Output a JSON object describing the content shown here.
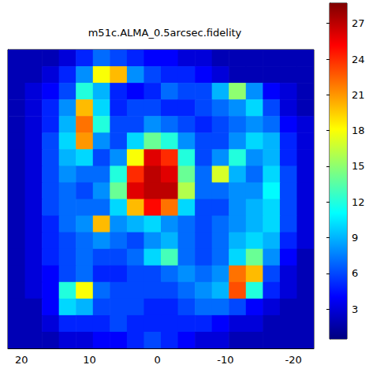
{
  "chart_data": {
    "type": "heatmap",
    "title": "m51c.ALMA_0.5arcsec.fidelity",
    "x": [
      20.75,
      18.25,
      15.75,
      13.25,
      10.75,
      8.25,
      5.75,
      3.25,
      0.75,
      -1.75,
      -4.25,
      -6.75,
      -9.25,
      -11.75,
      -14.25,
      -16.75,
      -19.25,
      -21.75
    ],
    "y": [
      20.75,
      18.25,
      15.75,
      13.25,
      10.75,
      8.25,
      5.75,
      3.25,
      0.75,
      -1.75,
      -4.25,
      -6.75,
      -9.25,
      -11.75,
      -14.25,
      -16.75,
      -19.25,
      -21.75
    ],
    "values": [
      [
        2,
        2,
        2,
        3,
        5,
        7,
        6,
        5,
        4,
        4,
        3,
        3,
        2,
        2,
        2,
        2,
        2,
        2
      ],
      [
        2,
        2,
        3,
        5,
        8,
        18,
        20,
        8,
        6,
        5,
        5,
        4,
        3,
        2,
        2,
        2,
        2,
        2
      ],
      [
        2,
        3,
        4,
        6,
        12,
        9,
        5,
        4,
        5,
        7,
        6,
        6,
        9,
        15,
        8,
        4,
        3,
        2
      ],
      [
        2,
        3,
        5,
        8,
        20,
        10,
        5,
        6,
        6,
        5,
        5,
        6,
        7,
        8,
        10,
        6,
        3,
        2
      ],
      [
        2,
        3,
        5,
        9,
        22,
        12,
        6,
        6,
        8,
        7,
        6,
        5,
        6,
        7,
        8,
        7,
        4,
        3
      ],
      [
        2,
        3,
        6,
        10,
        21,
        8,
        6,
        10,
        14,
        12,
        8,
        6,
        6,
        8,
        10,
        9,
        5,
        3
      ],
      [
        2,
        3,
        6,
        9,
        10,
        6,
        8,
        18,
        26,
        24,
        12,
        6,
        8,
        12,
        8,
        9,
        5,
        3
      ],
      [
        2,
        3,
        6,
        8,
        7,
        7,
        12,
        24,
        27,
        26,
        14,
        7,
        17,
        9,
        7,
        10,
        6,
        3
      ],
      [
        2,
        3,
        6,
        7,
        6,
        8,
        14,
        26,
        27,
        27,
        16,
        7,
        7,
        8,
        8,
        11,
        6,
        3
      ],
      [
        2,
        3,
        6,
        7,
        7,
        7,
        10,
        20,
        25,
        22,
        10,
        6,
        6,
        8,
        9,
        10,
        6,
        3
      ],
      [
        2,
        3,
        5,
        7,
        8,
        20,
        8,
        9,
        10,
        8,
        7,
        6,
        7,
        8,
        9,
        10,
        6,
        3
      ],
      [
        2,
        3,
        5,
        6,
        7,
        8,
        7,
        6,
        8,
        9,
        7,
        6,
        7,
        9,
        10,
        9,
        5,
        3
      ],
      [
        2,
        3,
        5,
        6,
        7,
        6,
        6,
        7,
        10,
        13,
        7,
        6,
        7,
        10,
        14,
        8,
        4,
        2
      ],
      [
        2,
        3,
        4,
        6,
        7,
        5,
        5,
        6,
        6,
        7,
        8,
        7,
        8,
        22,
        20,
        6,
        3,
        2
      ],
      [
        2,
        3,
        4,
        12,
        18,
        7,
        6,
        6,
        6,
        6,
        7,
        8,
        9,
        23,
        12,
        5,
        3,
        2
      ],
      [
        2,
        2,
        4,
        10,
        9,
        6,
        6,
        6,
        5,
        5,
        6,
        7,
        7,
        6,
        4,
        3,
        2,
        2
      ],
      [
        2,
        2,
        3,
        5,
        5,
        5,
        6,
        5,
        5,
        5,
        5,
        5,
        4,
        3,
        3,
        2,
        2,
        2
      ],
      [
        2,
        2,
        2,
        3,
        3,
        4,
        4,
        5,
        6,
        5,
        4,
        3,
        3,
        2,
        2,
        2,
        2,
        2
      ]
    ],
    "xlim": [
      22,
      -23
    ],
    "xticks": [
      20,
      10,
      0,
      -10,
      -20
    ],
    "ylim": [
      -23,
      22
    ],
    "tick_labels": "x",
    "colorbar": {
      "range": [
        0.5,
        28.7
      ],
      "ticks": [
        3,
        6,
        9,
        12,
        15,
        18,
        21,
        24,
        27
      ]
    }
  }
}
